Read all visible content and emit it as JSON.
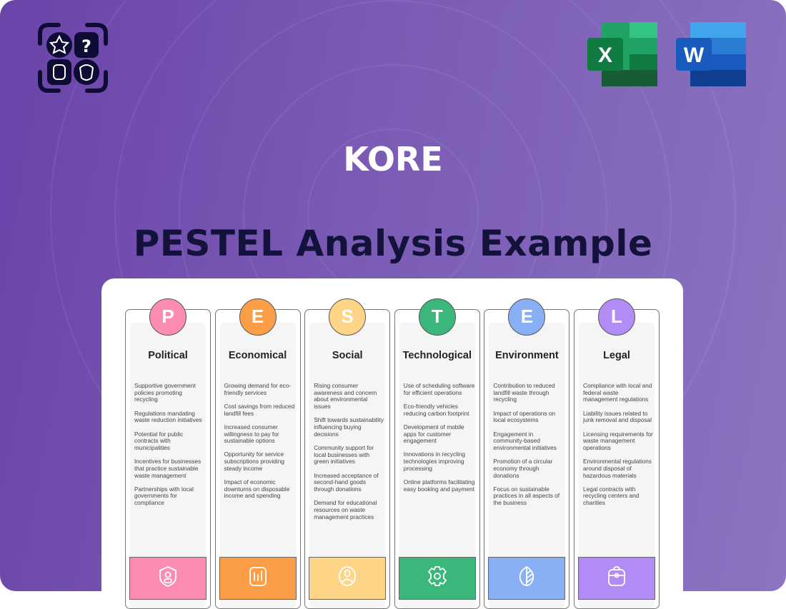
{
  "brand": "KORE",
  "title": "PESTEL  Analysis Example",
  "logos": {
    "app": "puzzle-icons-logo",
    "excel": "X",
    "word": "W"
  },
  "columns": [
    {
      "letter": "P",
      "title": "Political",
      "color": "#fc8db0",
      "icon": "shield-user-icon",
      "items": [
        "Supportive government policies promoting recycling",
        "Regulations mandating waste reduction initiatives",
        "Potential for public contracts with municipalities",
        "Incentives for businesses that practice sustainable waste management",
        "Partnerships with local governments for compliance"
      ]
    },
    {
      "letter": "E",
      "title": "Economical",
      "color": "#fb9e47",
      "icon": "bar-chart-icon",
      "items": [
        "Growing demand for eco-friendly services",
        "Cost savings from reduced landfill fees",
        "Increased consumer willingness to pay for sustainable options",
        "Opportunity for service subscriptions providing steady income",
        "Impact of economic downturns on disposable income and spending"
      ]
    },
    {
      "letter": "S",
      "title": "Social",
      "color": "#fed486",
      "icon": "user-circle-icon",
      "items": [
        "Rising consumer awareness and concern about environmental issues",
        "Shift towards sustainability influencing buying decisions",
        "Community support for local businesses with green initiatives",
        "Increased acceptance of second-hand goods through donations",
        "Demand for educational resources on waste management practices"
      ]
    },
    {
      "letter": "T",
      "title": "Technological",
      "color": "#3bb77b",
      "icon": "gear-icon",
      "items": [
        "Use of scheduling software for efficient operations",
        "Eco-friendly vehicles reducing carbon footprint",
        "Development of mobile apps for customer engagement",
        "Innovations in recycling technologies improving processing",
        "Online platforms facilitating easy booking and payment"
      ]
    },
    {
      "letter": "E",
      "title": "Environment",
      "color": "#89aff5",
      "icon": "leaf-icon",
      "items": [
        "Contribution to reduced landfill waste through recycling",
        "Impact of operations on local ecosystems",
        "Engagement in community-based environmental initiatives",
        "Promotion of a circular economy through donations",
        "Focus on sustainable practices in all aspects of the business"
      ]
    },
    {
      "letter": "L",
      "title": "Legal",
      "color": "#b28cf5",
      "icon": "briefcase-icon",
      "items": [
        "Compliance with local and federal waste management regulations",
        "Liability issues related to junk removal and disposal",
        "Licensing requirements for waste management operations",
        "Environmental regulations around disposal of hazardous materials",
        "Legal contracts with recycling centers and charities"
      ]
    }
  ]
}
